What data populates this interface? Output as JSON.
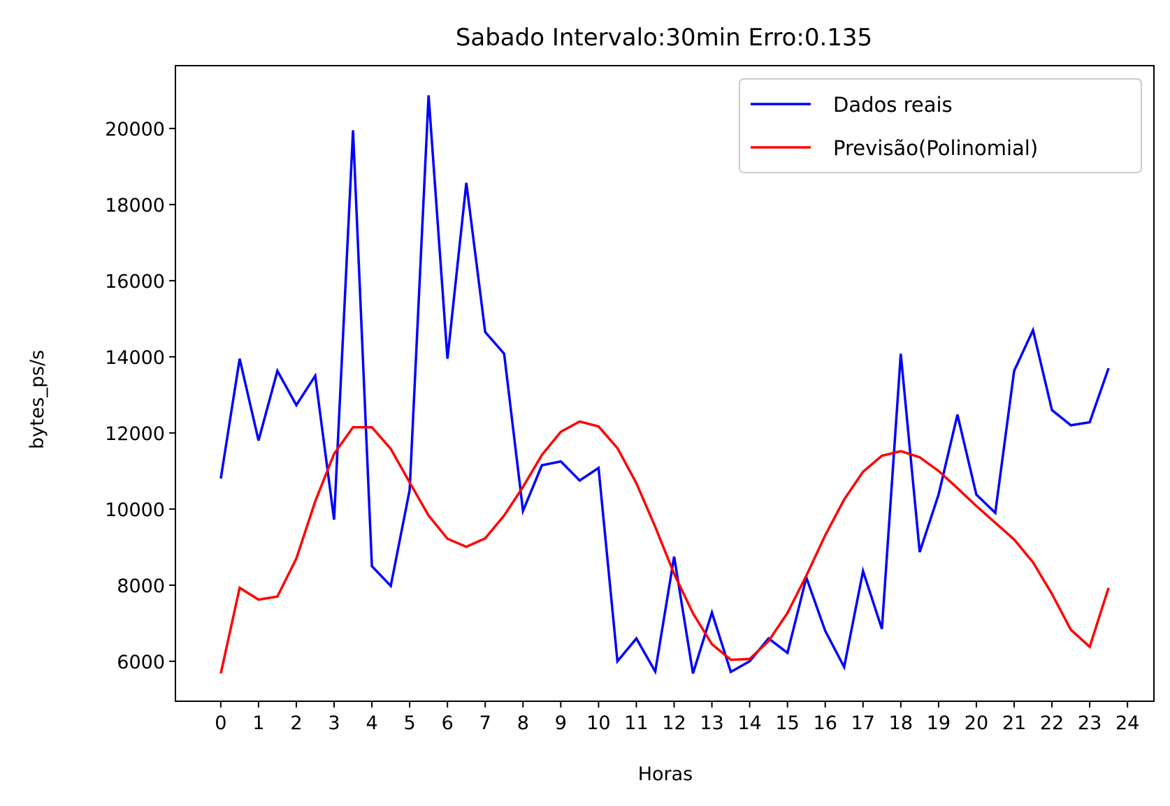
{
  "chart_data": {
    "type": "line",
    "title": "Sabado Intervalo:30min Erro:0.135",
    "xlabel": "Horas",
    "ylabel": "bytes_ps/s",
    "xlim": [
      -1.2,
      24.7
    ],
    "ylim": [
      4950,
      21650
    ],
    "xticks": [
      0,
      1,
      2,
      3,
      4,
      5,
      6,
      7,
      8,
      9,
      10,
      11,
      12,
      13,
      14,
      15,
      16,
      17,
      18,
      19,
      20,
      21,
      22,
      23,
      24
    ],
    "yticks": [
      6000,
      8000,
      10000,
      12000,
      14000,
      16000,
      18000,
      20000
    ],
    "grid": false,
    "legend_position": "top-right",
    "x": [
      0,
      0.5,
      1,
      1.5,
      2,
      2.5,
      3,
      3.5,
      4,
      4.5,
      5,
      5.5,
      6,
      6.5,
      7,
      7.5,
      8,
      8.5,
      9,
      9.5,
      10,
      10.5,
      11,
      11.5,
      12,
      12.5,
      13,
      13.5,
      14,
      14.5,
      15,
      15.5,
      16,
      16.5,
      17,
      17.5,
      18,
      18.5,
      19,
      19.5,
      20,
      20.5,
      21,
      21.5,
      22,
      22.5,
      23,
      23.5
    ],
    "series": [
      {
        "name": "Dados reais",
        "color": "#0000ff",
        "values": [
          10800,
          13950,
          11800,
          13630,
          12730,
          13500,
          9720,
          19950,
          8500,
          7980,
          10500,
          20870,
          13950,
          18570,
          14650,
          14080,
          9950,
          11150,
          11250,
          10750,
          11080,
          6000,
          6600,
          5730,
          8750,
          5680,
          7280,
          5720,
          6000,
          6600,
          6220,
          8200,
          6800,
          5850,
          8370,
          6850,
          14080,
          8870,
          10380,
          12480,
          10380,
          9900,
          13630,
          14700,
          12600,
          12200,
          12280,
          13700
        ]
      },
      {
        "name": "Previsão(Polinomial)",
        "color": "#ff0000",
        "values": [
          5680,
          7930,
          7620,
          7700,
          8700,
          10200,
          11450,
          12150,
          12150,
          11580,
          10700,
          9830,
          9220,
          9010,
          9230,
          9830,
          10580,
          11420,
          12030,
          12300,
          12170,
          11600,
          10680,
          9530,
          8300,
          7260,
          6450,
          6040,
          6060,
          6530,
          7270,
          8250,
          9310,
          10250,
          10980,
          11400,
          11520,
          11360,
          11000,
          10550,
          10080,
          9640,
          9200,
          8600,
          7770,
          6830,
          6380,
          7930
        ]
      }
    ]
  }
}
